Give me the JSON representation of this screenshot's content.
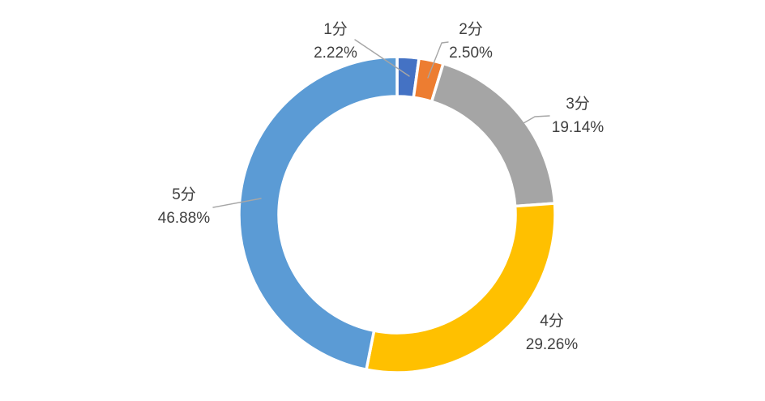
{
  "chart_data": {
    "type": "pie",
    "subtype": "donut",
    "title": "",
    "categories": [
      "1分",
      "2分",
      "3分",
      "4分",
      "5分"
    ],
    "values": [
      2.22,
      2.5,
      19.14,
      29.26,
      46.88
    ],
    "value_unit": "%",
    "colors": [
      "#4472C4",
      "#ED7D31",
      "#A5A5A5",
      "#FFC000",
      "#5B9BD5"
    ],
    "labels": [
      {
        "category": "1分",
        "percent": "2.22%"
      },
      {
        "category": "2分",
        "percent": "2.50%"
      },
      {
        "category": "3分",
        "percent": "19.14%"
      },
      {
        "category": "4分",
        "percent": "29.26%"
      },
      {
        "category": "5分",
        "percent": "46.88%"
      }
    ],
    "start_angle_deg": 0,
    "clockwise": true,
    "inner_radius_ratio": 0.749,
    "slice_gap_color": "#FFFFFF",
    "legend": "none",
    "grid": "off",
    "label_color": "#404040",
    "leader_line_color": "#A6A6A6",
    "background_color": "#FFFFFF"
  }
}
